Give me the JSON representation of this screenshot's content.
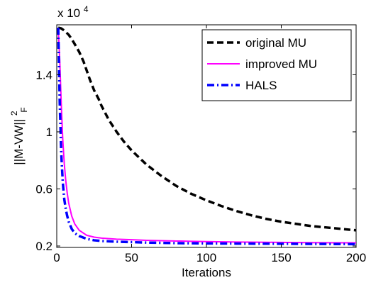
{
  "chart_data": {
    "type": "line",
    "title": "",
    "xlabel": "Iterations",
    "ylabel_main": "||M-VW||",
    "ylabel_sup": "2",
    "ylabel_sub": "F",
    "y_multiplier": "x 10",
    "y_multiplier_exp": "4",
    "xlim": [
      0,
      200
    ],
    "ylim": [
      0.19,
      1.75
    ],
    "x_ticks": [
      0,
      50,
      100,
      150,
      200
    ],
    "x_tick_labels": [
      "0",
      "50",
      "100",
      "150",
      "200"
    ],
    "y_ticks": [
      0.2,
      0.6,
      1.0,
      1.4
    ],
    "y_tick_labels": [
      "0.2",
      "0.6",
      "1",
      "1.4"
    ],
    "grid": false,
    "legend_position": "top-right",
    "series": [
      {
        "name": "original MU",
        "color": "#000000",
        "dash": "dashed",
        "x": [
          1,
          3,
          5,
          8,
          10,
          12,
          15,
          18,
          20,
          22,
          25,
          28,
          30,
          35,
          40,
          45,
          50,
          60,
          70,
          80,
          90,
          100,
          110,
          120,
          130,
          140,
          150,
          160,
          170,
          180,
          190,
          200
        ],
        "y": [
          1.73,
          1.725,
          1.71,
          1.68,
          1.65,
          1.615,
          1.56,
          1.49,
          1.43,
          1.37,
          1.29,
          1.23,
          1.18,
          1.08,
          1.0,
          0.93,
          0.87,
          0.77,
          0.69,
          0.62,
          0.565,
          0.52,
          0.48,
          0.445,
          0.415,
          0.39,
          0.37,
          0.355,
          0.34,
          0.33,
          0.32,
          0.31
        ]
      },
      {
        "name": "improved MU",
        "color": "#ff00ff",
        "dash": "solid",
        "x": [
          1,
          2,
          3,
          4,
          5,
          6,
          7,
          8,
          10,
          12,
          15,
          20,
          25,
          30,
          40,
          50,
          60,
          70,
          80,
          90,
          100,
          120,
          140,
          160,
          180,
          200
        ],
        "y": [
          1.73,
          1.5,
          1.2,
          0.95,
          0.78,
          0.66,
          0.57,
          0.5,
          0.41,
          0.355,
          0.31,
          0.275,
          0.262,
          0.255,
          0.248,
          0.244,
          0.24,
          0.237,
          0.235,
          0.233,
          0.231,
          0.228,
          0.226,
          0.224,
          0.223,
          0.222
        ]
      },
      {
        "name": "HALS",
        "color": "#0000ff",
        "dash": "dashdot",
        "x": [
          1,
          2,
          3,
          4,
          5,
          6,
          7,
          8,
          10,
          12,
          15,
          20,
          25,
          30,
          40,
          50,
          60,
          70,
          80,
          90,
          100,
          120,
          140,
          160,
          180,
          200
        ],
        "y": [
          1.73,
          1.2,
          0.85,
          0.65,
          0.53,
          0.46,
          0.41,
          0.37,
          0.32,
          0.29,
          0.27,
          0.25,
          0.24,
          0.235,
          0.23,
          0.227,
          0.224,
          0.222,
          0.22,
          0.219,
          0.218,
          0.217,
          0.216,
          0.215,
          0.214,
          0.213
        ]
      }
    ]
  }
}
